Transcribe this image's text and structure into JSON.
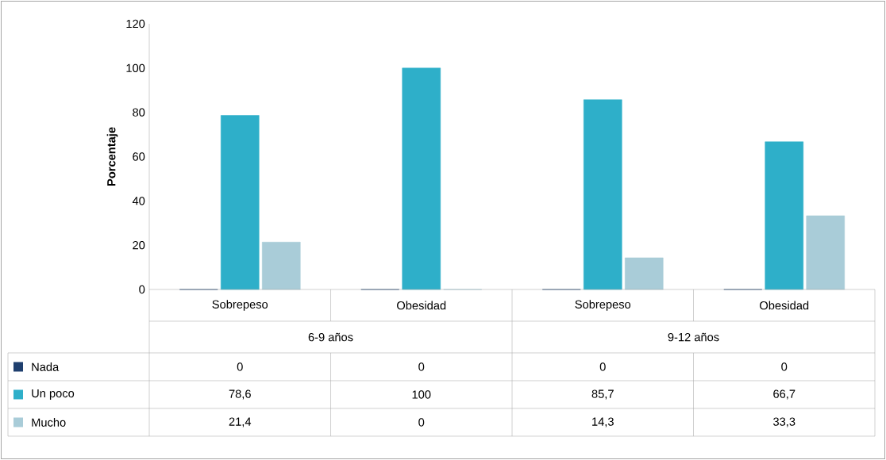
{
  "chart_data": {
    "type": "bar",
    "ylabel": "Porcentaje",
    "categories": [
      "Sobrepeso",
      "Obesidad",
      "Sobrepeso",
      "Obesidad"
    ],
    "annotations": [
      "6-9 años",
      "9-12 años"
    ],
    "series": [
      {
        "name": "Nada",
        "color": "#1f3f6e",
        "values": [
          0,
          0,
          0,
          0
        ],
        "value_labels": [
          "0",
          "0",
          "0",
          "0"
        ]
      },
      {
        "name": "Un poco",
        "color": "#2eafc9",
        "values": [
          78.6,
          100,
          85.7,
          66.7
        ],
        "value_labels": [
          "78,6",
          "100",
          "85,7",
          "66,7"
        ]
      },
      {
        "name": "Mucho",
        "color": "#a9ccd8",
        "values": [
          21.4,
          0,
          14.3,
          33.3
        ],
        "value_labels": [
          "21,4",
          "0",
          "14,3",
          "33,3"
        ]
      }
    ],
    "ylim": [
      0,
      120
    ],
    "yticks": [
      0,
      20,
      40,
      60,
      80,
      100,
      120
    ],
    "legend": "bottom left"
  }
}
